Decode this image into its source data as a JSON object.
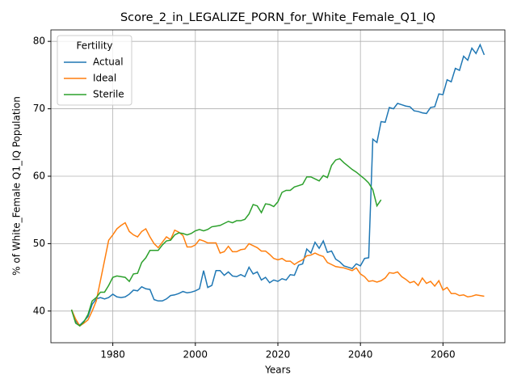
{
  "chart_data": {
    "type": "line",
    "title": "Score_2_in_LEGALIZE_PORN_for_White_Female_Q1_IQ",
    "xlabel": "Years",
    "ylabel": "% of White_Female Q1_IQ Population",
    "legend_title": "Fertility",
    "legend": "upper left",
    "grid": true,
    "xlim": [
      1965,
      2075
    ],
    "xticks": [
      1980,
      2000,
      2020,
      2040,
      2060
    ],
    "ylim": [
      35.3,
      81.7
    ],
    "yticks": [
      40,
      50,
      60,
      70,
      80
    ],
    "x": [
      1970,
      1971,
      1972,
      1973,
      1974,
      1975,
      1976,
      1977,
      1978,
      1979,
      1980,
      1981,
      1982,
      1983,
      1984,
      1985,
      1986,
      1987,
      1988,
      1989,
      1990,
      1991,
      1992,
      1993,
      1994,
      1995,
      1996,
      1997,
      1998,
      1999,
      2000,
      2001,
      2002,
      2003,
      2004,
      2005,
      2006,
      2007,
      2008,
      2009,
      2010,
      2011,
      2012,
      2013,
      2014,
      2015,
      2016,
      2017,
      2018,
      2019,
      2020,
      2021,
      2022,
      2023,
      2024,
      2025,
      2026,
      2027,
      2028,
      2029,
      2030,
      2031,
      2032,
      2033,
      2034,
      2035,
      2036,
      2037,
      2038,
      2039,
      2040,
      2041,
      2042,
      2043,
      2044,
      2045,
      2046,
      2047,
      2048,
      2049,
      2050,
      2051,
      2052,
      2053,
      2054,
      2055,
      2056,
      2057,
      2058,
      2059,
      2060,
      2061,
      2062,
      2063,
      2064,
      2065,
      2066,
      2067,
      2068,
      2069,
      2070
    ],
    "series": [
      {
        "name": "Actual",
        "color": "#1f77b4",
        "values": [
          40.2,
          38.5,
          37.9,
          38.5,
          39.2,
          41,
          41.8,
          42,
          41.8,
          42,
          42.5,
          42.1,
          42,
          42.1,
          42.5,
          43.1,
          43,
          43.6,
          43.3,
          43.2,
          41.7,
          41.5,
          41.5,
          41.8,
          42.3,
          42.4,
          42.6,
          42.9,
          42.7,
          42.8,
          43,
          43.3,
          46,
          43.5,
          43.8,
          46,
          46,
          45.3,
          45.8,
          45.2,
          45.1,
          45.4,
          45.1,
          46.5,
          45.5,
          45.8,
          44.6,
          45,
          44.2,
          44.6,
          44.4,
          44.8,
          44.6,
          45.4,
          45.3,
          46.8,
          47,
          49.2,
          48.6,
          50.2,
          49.3,
          50.4,
          48.7,
          48.9,
          47.7,
          47.3,
          46.7,
          46.5,
          46.3,
          47,
          46.7,
          47.8,
          47.9,
          65.5,
          65,
          68.1,
          68,
          70.2,
          70,
          70.8,
          70.6,
          70.4,
          70.3,
          69.7,
          69.6,
          69.4,
          69.3,
          70.2,
          70.3,
          72.2,
          72.1,
          74.3,
          74,
          76,
          75.7,
          77.8,
          77.2,
          79,
          78.2,
          79.5,
          78
        ]
      },
      {
        "name": "Ideal",
        "color": "#ff7f0e",
        "values": [
          40.2,
          38.8,
          37.8,
          38.2,
          38.7,
          40,
          41.5,
          44.5,
          47.5,
          50.5,
          51.3,
          52.2,
          52.7,
          53.1,
          51.8,
          51.3,
          51,
          51.8,
          52.2,
          51,
          50,
          49.4,
          50.2,
          51,
          50.6,
          52,
          51.7,
          51.2,
          49.5,
          49.5,
          49.8,
          50.6,
          50.4,
          50.1,
          50.1,
          50.1,
          48.6,
          48.8,
          49.6,
          48.8,
          48.8,
          49.1,
          49.2,
          50,
          49.7,
          49.4,
          48.9,
          48.9,
          48.4,
          47.8,
          47.6,
          47.8,
          47.4,
          47.4,
          46.9,
          47.3,
          47.6,
          48.2,
          48.3,
          48.6,
          48.3,
          48.1,
          47.2,
          46.9,
          46.6,
          46.5,
          46.4,
          46.2,
          46,
          46.4,
          45.5,
          45.1,
          44.4,
          44.5,
          44.3,
          44.5,
          44.9,
          45.7,
          45.6,
          45.8,
          45.1,
          44.7,
          44.2,
          44.4,
          43.8,
          44.9,
          44.1,
          44.4,
          43.7,
          44.5,
          43.1,
          43.5,
          42.6,
          42.6,
          42.3,
          42.4,
          42.1,
          42.2,
          42.4,
          42.3,
          42.2
        ]
      },
      {
        "name": "Sterile",
        "color": "#2ca02c",
        "values": [
          40.2,
          38.2,
          37.8,
          38.4,
          39.5,
          41.5,
          42,
          42.8,
          42.8,
          43.8,
          45,
          45.2,
          45.1,
          45,
          44.4,
          45.5,
          45.6,
          47.2,
          47.9,
          49,
          49,
          49,
          49.8,
          50.4,
          50.5,
          51.3,
          51.6,
          51.5,
          51.3,
          51.5,
          51.9,
          52.1,
          51.9,
          52.1,
          52.5,
          52.6,
          52.7,
          53,
          53.3,
          53.1,
          53.4,
          53.4,
          53.6,
          54.4,
          55.8,
          55.6,
          54.6,
          55.9,
          55.8,
          55.5,
          56.2,
          57.6,
          57.9,
          57.9,
          58.4,
          58.6,
          58.8,
          59.9,
          59.9,
          59.6,
          59.3,
          60.1,
          59.8,
          61.6,
          62.4,
          62.6,
          62,
          61.5,
          61,
          60.6,
          60.1,
          59.6,
          59,
          58,
          55.6,
          56.5,
          null,
          null,
          null,
          null,
          null,
          null,
          null,
          null,
          null,
          null,
          null,
          null,
          null,
          null,
          null,
          null,
          null,
          null,
          null,
          null,
          null,
          null,
          null,
          null,
          null
        ]
      }
    ]
  }
}
